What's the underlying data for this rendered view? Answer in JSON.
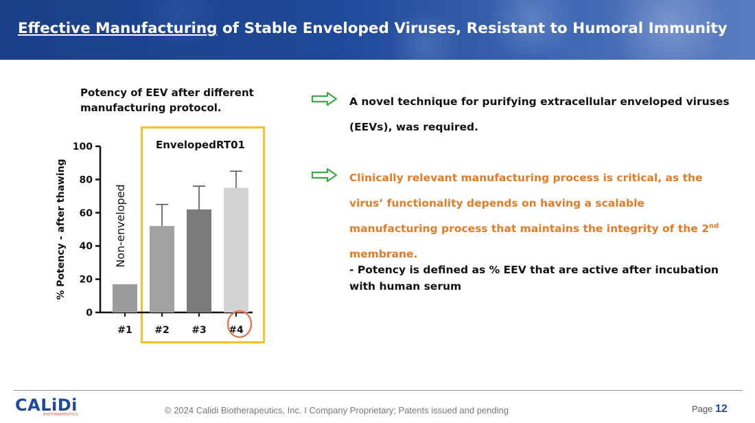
{
  "header": {
    "title_underlined": "Effective Manufacturing",
    "title_rest": " of Stable Enveloped Viruses, Resistant to Humoral Immunity"
  },
  "chart_caption": "Potency of EEV after different manufacturing protocol.",
  "box_label": "EnvelopedRT01",
  "colors": {
    "header_blue": "#1f4a99",
    "highlight": "#f2c230",
    "arrow_green": "#3aa845",
    "orange_text": "#e57a27",
    "circle": "#e2703a"
  },
  "chart_data": {
    "type": "bar",
    "categories": [
      "#1",
      "#2",
      "#3",
      "#4"
    ],
    "values": [
      17,
      52,
      62,
      75
    ],
    "errors": [
      null,
      13,
      14,
      10
    ],
    "colors": [
      "#9c9c9e",
      "#a2a2a4",
      "#7b7b7d",
      "#d3d3d5"
    ],
    "ylabel": "% Potency - after thawing",
    "ylim": [
      0,
      100
    ],
    "yticks": [
      0,
      20,
      40,
      60,
      80,
      100
    ],
    "annotation": "Non-enveloped",
    "circled_category": "#4"
  },
  "bullets": {
    "b1": "A novel technique for purifying extracellular enveloped viruses (EEVs), was required.",
    "b2_pre": "Clinically relevant manufacturing process is critical, as the virus’ functionality depends on having a scalable manufacturing process that maintains the integrity of the 2",
    "b2_sup": "nd",
    "b2_post": " membrane.",
    "b3": "- Potency is defined as % EEV that are active after incubation with human serum"
  },
  "footer": {
    "logo": "CALiDi",
    "logo_sub": "BIOTHERAPEUTICS",
    "copyright": "© 2024 Calidi Biotherapeutics, Inc. I  Company Proprietary; Patents issued and pending",
    "page_label": "Page",
    "page_number": "12"
  }
}
